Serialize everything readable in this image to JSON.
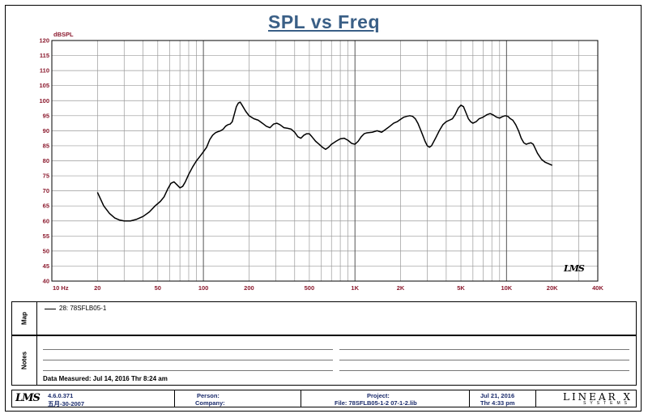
{
  "chart_data": {
    "type": "line",
    "title": "SPL vs Freq",
    "ylabel": "dBSPL",
    "xlabel": "",
    "x_scale": "log",
    "xlim": [
      10,
      40000
    ],
    "ylim": [
      40,
      120
    ],
    "grid": true,
    "y_ticks": [
      "40",
      "45",
      "50",
      "55",
      "60",
      "65",
      "70",
      "75",
      "80",
      "85",
      "90",
      "95",
      "100",
      "105",
      "110",
      "115",
      "120"
    ],
    "x_tick_labels": [
      {
        "value": 10,
        "label": "10  Hz"
      },
      {
        "value": 20,
        "label": "20"
      },
      {
        "value": 50,
        "label": "50"
      },
      {
        "value": 100,
        "label": "100"
      },
      {
        "value": 200,
        "label": "200"
      },
      {
        "value": 500,
        "label": "500"
      },
      {
        "value": 1000,
        "label": "1K"
      },
      {
        "value": 2000,
        "label": "2K"
      },
      {
        "value": 5000,
        "label": "5K"
      },
      {
        "value": 10000,
        "label": "10K"
      },
      {
        "value": 20000,
        "label": "20K"
      },
      {
        "value": 40000,
        "label": "40K"
      }
    ],
    "series": [
      {
        "name": "28: 78SFLB05-1",
        "color": "#000000",
        "points": [
          [
            20,
            69.5
          ],
          [
            22,
            65
          ],
          [
            24,
            62.5
          ],
          [
            26,
            61
          ],
          [
            28,
            60.3
          ],
          [
            30,
            60
          ],
          [
            33,
            60
          ],
          [
            36,
            60.5
          ],
          [
            40,
            61.5
          ],
          [
            44,
            63
          ],
          [
            48,
            65
          ],
          [
            52,
            66.5
          ],
          [
            55,
            68
          ],
          [
            58,
            70.5
          ],
          [
            61,
            72.5
          ],
          [
            64,
            73
          ],
          [
            67,
            72
          ],
          [
            70,
            71
          ],
          [
            73,
            71.5
          ],
          [
            76,
            73
          ],
          [
            80,
            75.5
          ],
          [
            85,
            78
          ],
          [
            90,
            80
          ],
          [
            95,
            81.5
          ],
          [
            100,
            83
          ],
          [
            105,
            84.5
          ],
          [
            110,
            87
          ],
          [
            115,
            88.5
          ],
          [
            120,
            89.3
          ],
          [
            125,
            89.7
          ],
          [
            130,
            90
          ],
          [
            135,
            90.5
          ],
          [
            140,
            91.5
          ],
          [
            145,
            92
          ],
          [
            150,
            92.2
          ],
          [
            155,
            93
          ],
          [
            160,
            95.5
          ],
          [
            165,
            98
          ],
          [
            170,
            99.2
          ],
          [
            175,
            99.5
          ],
          [
            180,
            98.5
          ],
          [
            190,
            96.5
          ],
          [
            200,
            95
          ],
          [
            215,
            94
          ],
          [
            230,
            93.5
          ],
          [
            245,
            92.5
          ],
          [
            260,
            91.5
          ],
          [
            275,
            91
          ],
          [
            290,
            92.2
          ],
          [
            305,
            92.5
          ],
          [
            320,
            92
          ],
          [
            340,
            91
          ],
          [
            360,
            90.8
          ],
          [
            380,
            90.5
          ],
          [
            400,
            89.5
          ],
          [
            420,
            88
          ],
          [
            440,
            87.5
          ],
          [
            460,
            88.5
          ],
          [
            480,
            89
          ],
          [
            500,
            89
          ],
          [
            520,
            88
          ],
          [
            550,
            86.5
          ],
          [
            580,
            85.5
          ],
          [
            610,
            84.5
          ],
          [
            640,
            83.8
          ],
          [
            670,
            84.5
          ],
          [
            700,
            85.5
          ],
          [
            750,
            86.5
          ],
          [
            800,
            87.3
          ],
          [
            850,
            87.5
          ],
          [
            900,
            86.8
          ],
          [
            950,
            85.8
          ],
          [
            1000,
            85.5
          ],
          [
            1050,
            86.5
          ],
          [
            1100,
            88
          ],
          [
            1150,
            89
          ],
          [
            1200,
            89.3
          ],
          [
            1300,
            89.5
          ],
          [
            1400,
            90
          ],
          [
            1500,
            89.5
          ],
          [
            1600,
            90.5
          ],
          [
            1700,
            91.5
          ],
          [
            1800,
            92.5
          ],
          [
            1900,
            93
          ],
          [
            2000,
            93.8
          ],
          [
            2100,
            94.5
          ],
          [
            2200,
            94.8
          ],
          [
            2300,
            95
          ],
          [
            2400,
            94.8
          ],
          [
            2500,
            94
          ],
          [
            2600,
            92.5
          ],
          [
            2700,
            90.5
          ],
          [
            2800,
            88.5
          ],
          [
            2900,
            86.5
          ],
          [
            3000,
            85
          ],
          [
            3100,
            84.5
          ],
          [
            3200,
            85
          ],
          [
            3400,
            87.5
          ],
          [
            3600,
            90
          ],
          [
            3800,
            92
          ],
          [
            4000,
            93
          ],
          [
            4200,
            93.5
          ],
          [
            4400,
            94
          ],
          [
            4600,
            95.5
          ],
          [
            4800,
            97.5
          ],
          [
            5000,
            98.5
          ],
          [
            5200,
            98
          ],
          [
            5400,
            96
          ],
          [
            5600,
            94
          ],
          [
            5800,
            93
          ],
          [
            6000,
            92.5
          ],
          [
            6300,
            93
          ],
          [
            6600,
            94
          ],
          [
            7000,
            94.5
          ],
          [
            7400,
            95.3
          ],
          [
            7800,
            95.7
          ],
          [
            8200,
            95.2
          ],
          [
            8600,
            94.5
          ],
          [
            9000,
            94.2
          ],
          [
            9400,
            94.7
          ],
          [
            9800,
            95
          ],
          [
            10200,
            94.8
          ],
          [
            10600,
            94
          ],
          [
            11000,
            93.5
          ],
          [
            11500,
            92
          ],
          [
            12000,
            90
          ],
          [
            12500,
            87.5
          ],
          [
            13000,
            86
          ],
          [
            13500,
            85.5
          ],
          [
            14000,
            85.8
          ],
          [
            14500,
            86
          ],
          [
            15000,
            85.5
          ],
          [
            15500,
            84
          ],
          [
            16000,
            82.5
          ],
          [
            17000,
            80.5
          ],
          [
            18000,
            79.5
          ],
          [
            19000,
            79
          ],
          [
            20000,
            78.5
          ]
        ]
      }
    ]
  },
  "map": {
    "tab_label": "Map",
    "legend_entry": "28: 78SFLB05-1"
  },
  "notes": {
    "tab_label": "Notes",
    "measured": "Data Measured: Jul 14, 2016  Thr  8:24 am"
  },
  "footer": {
    "version": "4.6.0.371",
    "version_date": "五月-30-2007",
    "person_label": "Person:",
    "company_label": "Company:",
    "project_label": "Project:",
    "file_label": "File: 78SFLB05-1-2 07-1-2.lib",
    "date": "Jul 21, 2016",
    "time": "Thr  4:33 pm",
    "logo_left": "LMS",
    "brand": "LINEAR X",
    "brand_sub": "SYSTEMS"
  },
  "plot_logo": "LMS"
}
